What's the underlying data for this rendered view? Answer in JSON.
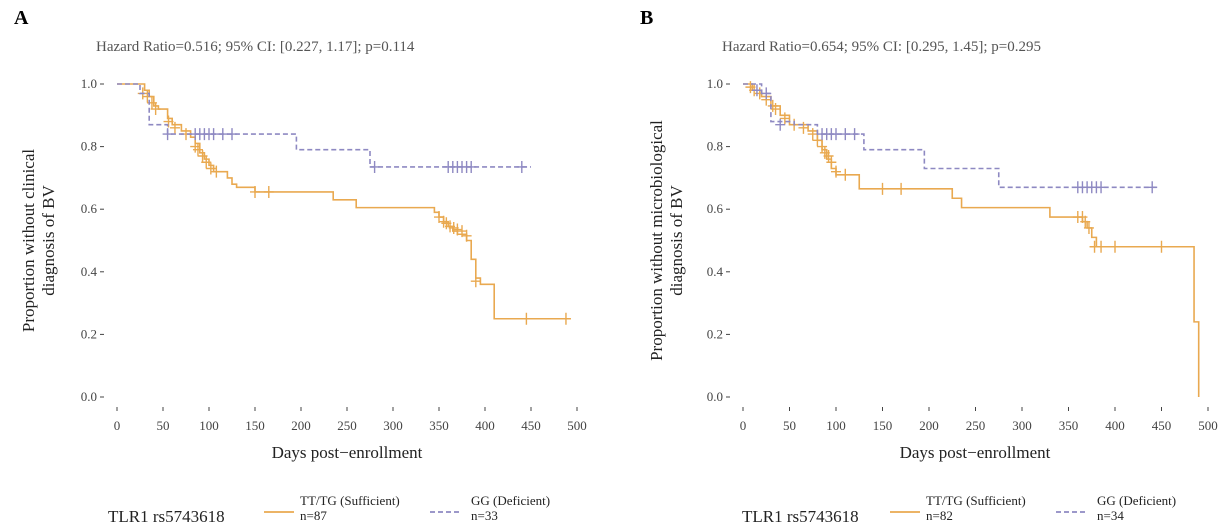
{
  "chart_data": [
    {
      "type": "line",
      "panel": "A",
      "title": "Hazard Ratio=0.516; 95% CI: [0.227, 1.17]; p=0.114",
      "xlabel": "Days post−enrollment",
      "ylabel": [
        "Proportion without clinical",
        "diagnosis of BV"
      ],
      "xlim": [
        0,
        500
      ],
      "ylim": [
        0,
        1
      ],
      "xticks": [
        0,
        50,
        100,
        150,
        200,
        250,
        300,
        350,
        400,
        450,
        500
      ],
      "yticks": [
        0.0,
        0.2,
        0.4,
        0.6,
        0.8,
        1.0
      ],
      "ytick_labels": [
        "0.0",
        "0.2",
        "0.4",
        "0.6",
        "0.8",
        "1.0"
      ],
      "grid": false,
      "legend_position": "bottom",
      "legend_title": "TLR1 rs5743618",
      "series": [
        {
          "name": "TT/TG (Sufficient)",
          "n_label": "n=87",
          "color": "#E9A950",
          "dash": false,
          "steps": [
            [
              0,
              1.0
            ],
            [
              30,
              0.98
            ],
            [
              35,
              0.96
            ],
            [
              40,
              0.93
            ],
            [
              45,
              0.92
            ],
            [
              55,
              0.89
            ],
            [
              60,
              0.87
            ],
            [
              70,
              0.85
            ],
            [
              80,
              0.83
            ],
            [
              85,
              0.81
            ],
            [
              90,
              0.78
            ],
            [
              95,
              0.76
            ],
            [
              100,
              0.74
            ],
            [
              105,
              0.72
            ],
            [
              120,
              0.7
            ],
            [
              125,
              0.68
            ],
            [
              130,
              0.67
            ],
            [
              150,
              0.655
            ],
            [
              235,
              0.63
            ],
            [
              260,
              0.605
            ],
            [
              345,
              0.59
            ],
            [
              350,
              0.575
            ],
            [
              355,
              0.56
            ],
            [
              360,
              0.545
            ],
            [
              365,
              0.53
            ],
            [
              370,
              0.52
            ],
            [
              380,
              0.5
            ],
            [
              385,
              0.44
            ],
            [
              390,
              0.38
            ],
            [
              395,
              0.36
            ],
            [
              410,
              0.25
            ],
            [
              490,
              0.25
            ]
          ],
          "censors": [
            [
              28,
              0.97
            ],
            [
              33,
              0.96
            ],
            [
              38,
              0.94
            ],
            [
              42,
              0.92
            ],
            [
              56,
              0.88
            ],
            [
              63,
              0.86
            ],
            [
              75,
              0.84
            ],
            [
              85,
              0.8
            ],
            [
              88,
              0.79
            ],
            [
              93,
              0.77
            ],
            [
              97,
              0.75
            ],
            [
              102,
              0.73
            ],
            [
              108,
              0.72
            ],
            [
              150,
              0.655
            ],
            [
              165,
              0.655
            ],
            [
              350,
              0.575
            ],
            [
              355,
              0.56
            ],
            [
              358,
              0.555
            ],
            [
              362,
              0.545
            ],
            [
              366,
              0.54
            ],
            [
              370,
              0.535
            ],
            [
              375,
              0.53
            ],
            [
              380,
              0.515
            ],
            [
              390,
              0.37
            ],
            [
              445,
              0.25
            ],
            [
              488,
              0.25
            ]
          ]
        },
        {
          "name": "GG (Deficient)",
          "n_label": "n=33",
          "color": "#8E89C2",
          "dash": true,
          "steps": [
            [
              0,
              1.0
            ],
            [
              25,
              0.97
            ],
            [
              35,
              0.87
            ],
            [
              55,
              0.84
            ],
            [
              195,
              0.79
            ],
            [
              275,
              0.735
            ],
            [
              450,
              0.735
            ]
          ],
          "censors": [
            [
              55,
              0.84
            ],
            [
              85,
              0.84
            ],
            [
              90,
              0.84
            ],
            [
              95,
              0.84
            ],
            [
              100,
              0.84
            ],
            [
              105,
              0.84
            ],
            [
              115,
              0.84
            ],
            [
              125,
              0.84
            ],
            [
              280,
              0.735
            ],
            [
              360,
              0.735
            ],
            [
              365,
              0.735
            ],
            [
              370,
              0.735
            ],
            [
              375,
              0.735
            ],
            [
              380,
              0.735
            ],
            [
              385,
              0.735
            ],
            [
              440,
              0.735
            ]
          ]
        }
      ]
    },
    {
      "type": "line",
      "panel": "B",
      "title": "Hazard Ratio=0.654; 95% CI: [0.295, 1.45]; p=0.295",
      "xlabel": "Days post−enrollment",
      "ylabel": [
        "Proportion without microbiological",
        "diagnosis of BV"
      ],
      "xlim": [
        0,
        500
      ],
      "ylim": [
        0,
        1
      ],
      "xticks": [
        0,
        50,
        100,
        150,
        200,
        250,
        300,
        350,
        400,
        450,
        500
      ],
      "yticks": [
        0.0,
        0.2,
        0.4,
        0.6,
        0.8,
        1.0
      ],
      "ytick_labels": [
        "0.0",
        "0.2",
        "0.4",
        "0.6",
        "0.8",
        "1.0"
      ],
      "grid": false,
      "legend_position": "bottom",
      "legend_title": "TLR1 rs5743618",
      "series": [
        {
          "name": "TT/TG (Sufficient)",
          "n_label": "n=82",
          "color": "#E9A950",
          "dash": false,
          "steps": [
            [
              0,
              1.0
            ],
            [
              10,
              0.98
            ],
            [
              20,
              0.96
            ],
            [
              30,
              0.93
            ],
            [
              40,
              0.9
            ],
            [
              50,
              0.87
            ],
            [
              70,
              0.85
            ],
            [
              80,
              0.82
            ],
            [
              85,
              0.79
            ],
            [
              90,
              0.76
            ],
            [
              95,
              0.73
            ],
            [
              100,
              0.71
            ],
            [
              125,
              0.665
            ],
            [
              225,
              0.635
            ],
            [
              235,
              0.605
            ],
            [
              330,
              0.575
            ],
            [
              365,
              0.56
            ],
            [
              370,
              0.54
            ],
            [
              375,
              0.51
            ],
            [
              380,
              0.48
            ],
            [
              485,
              0.24
            ],
            [
              490,
              0.0
            ]
          ],
          "censors": [
            [
              8,
              0.99
            ],
            [
              12,
              0.98
            ],
            [
              18,
              0.97
            ],
            [
              25,
              0.95
            ],
            [
              32,
              0.93
            ],
            [
              35,
              0.92
            ],
            [
              45,
              0.89
            ],
            [
              55,
              0.87
            ],
            [
              65,
              0.86
            ],
            [
              75,
              0.84
            ],
            [
              80,
              0.82
            ],
            [
              85,
              0.8
            ],
            [
              88,
              0.78
            ],
            [
              92,
              0.77
            ],
            [
              95,
              0.75
            ],
            [
              100,
              0.72
            ],
            [
              110,
              0.71
            ],
            [
              150,
              0.665
            ],
            [
              170,
              0.665
            ],
            [
              360,
              0.575
            ],
            [
              365,
              0.575
            ],
            [
              368,
              0.56
            ],
            [
              372,
              0.54
            ],
            [
              378,
              0.48
            ],
            [
              385,
              0.48
            ],
            [
              400,
              0.48
            ],
            [
              450,
              0.48
            ]
          ]
        },
        {
          "name": "GG (Deficient)",
          "n_label": "n=34",
          "color": "#8E89C2",
          "dash": true,
          "steps": [
            [
              0,
              1.0
            ],
            [
              20,
              0.97
            ],
            [
              30,
              0.88
            ],
            [
              55,
              0.87
            ],
            [
              80,
              0.84
            ],
            [
              130,
              0.79
            ],
            [
              195,
              0.73
            ],
            [
              275,
              0.67
            ],
            [
              445,
              0.67
            ]
          ],
          "censors": [
            [
              15,
              0.98
            ],
            [
              25,
              0.97
            ],
            [
              40,
              0.87
            ],
            [
              85,
              0.84
            ],
            [
              90,
              0.84
            ],
            [
              95,
              0.84
            ],
            [
              100,
              0.84
            ],
            [
              110,
              0.84
            ],
            [
              120,
              0.84
            ],
            [
              360,
              0.67
            ],
            [
              365,
              0.67
            ],
            [
              370,
              0.67
            ],
            [
              375,
              0.67
            ],
            [
              380,
              0.67
            ],
            [
              385,
              0.67
            ],
            [
              440,
              0.67
            ]
          ]
        }
      ]
    }
  ]
}
